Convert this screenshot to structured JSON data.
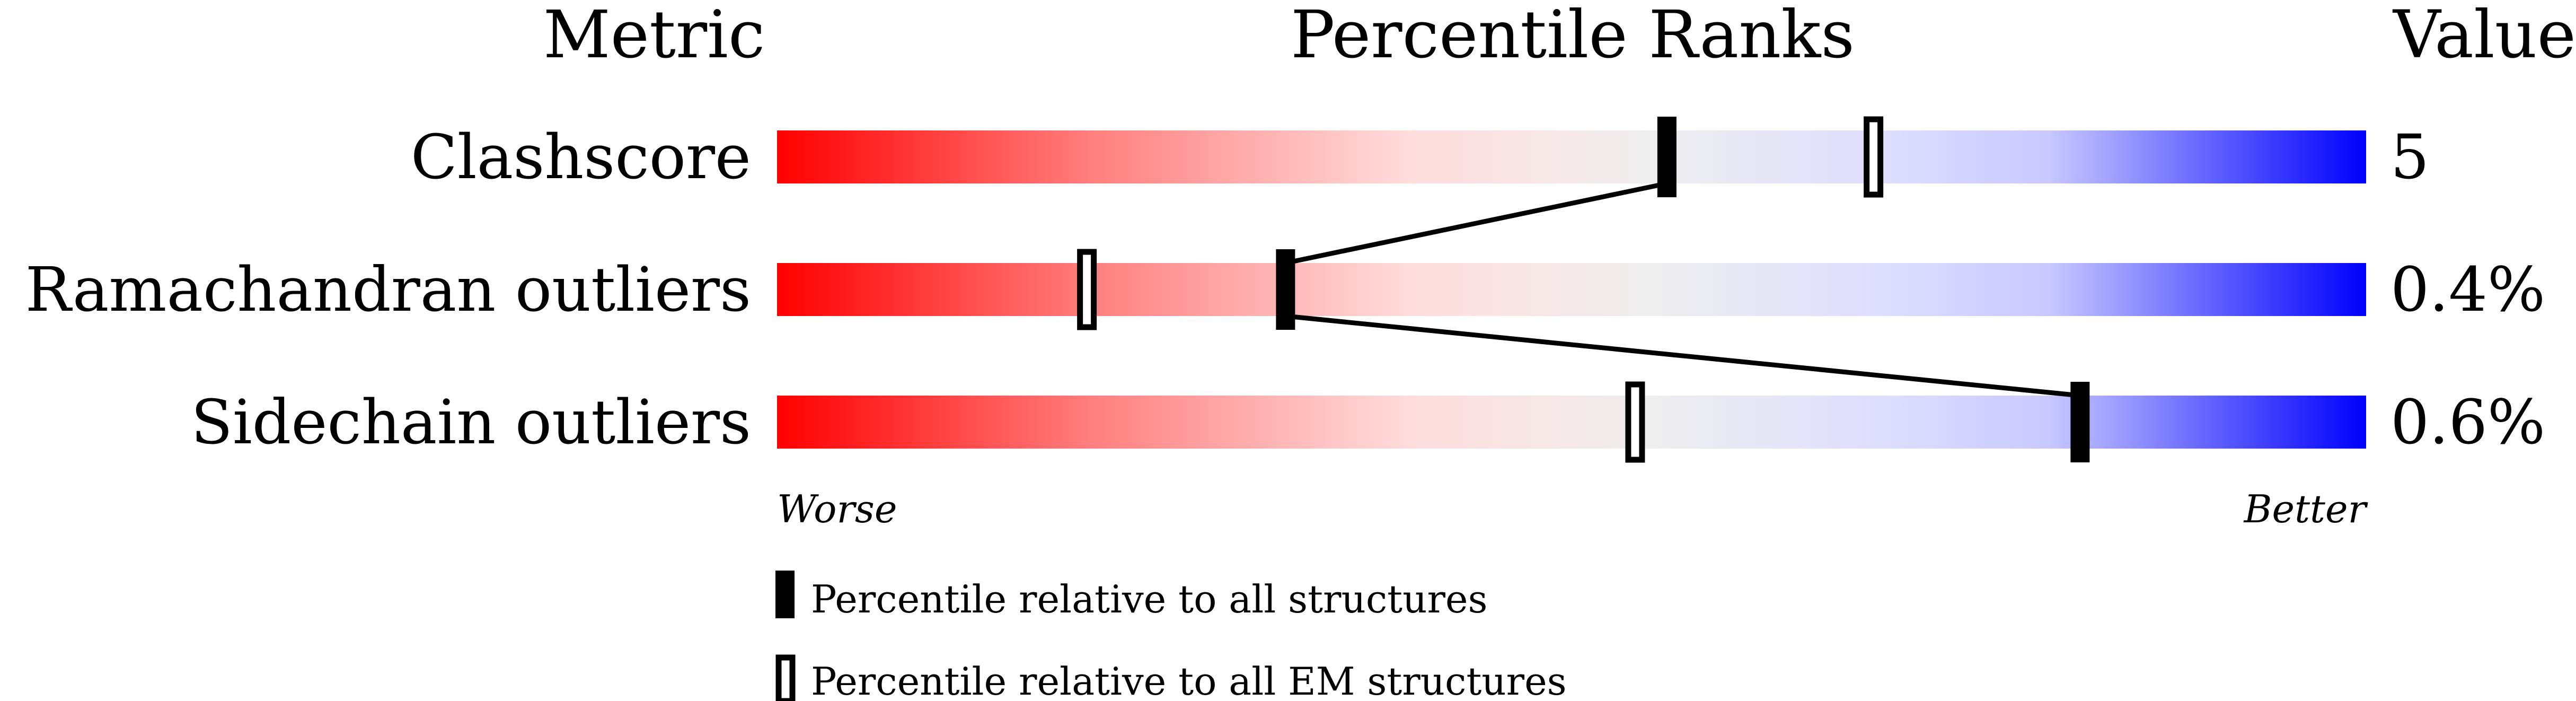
{
  "chart_data": {
    "type": "percentile-slider",
    "headers": {
      "metric": "Metric",
      "ranks": "Percentile Ranks",
      "value": "Value"
    },
    "xlim": [
      0,
      100
    ],
    "axis_labels": {
      "left": "Worse",
      "right": "Better"
    },
    "metrics": [
      {
        "name": "Clashscore",
        "value": "5",
        "percentile_all": 56,
        "percentile_em": 69
      },
      {
        "name": "Ramachandran outliers",
        "value": "0.4%",
        "percentile_all": 32,
        "percentile_em": 19.5
      },
      {
        "name": "Sidechain outliers",
        "value": "0.6%",
        "percentile_all": 82,
        "percentile_em": 54
      }
    ],
    "legend": [
      {
        "marker": "filled",
        "label": "Percentile relative to all structures"
      },
      {
        "marker": "open",
        "label": "Percentile relative to all EM structures"
      }
    ],
    "colors": {
      "worse": "#ff0000",
      "mid": "#eeeeee",
      "better": "#0000ff"
    }
  }
}
